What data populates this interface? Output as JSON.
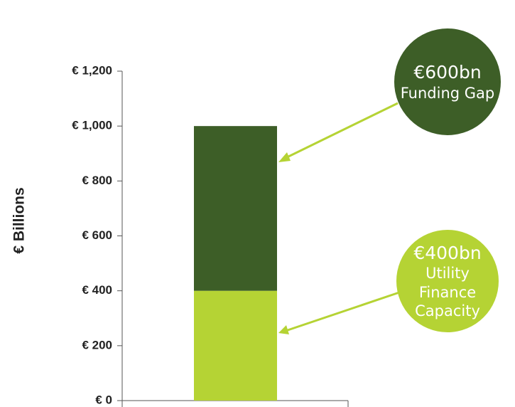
{
  "chart_data": {
    "type": "stacked-bar",
    "ylabel": "€ Billions",
    "categories": [
      null
    ],
    "series": [
      {
        "name": "Utility Finance Capacity",
        "color": "#b5d334",
        "values": [
          400
        ],
        "value_labels": [
          "€400bn"
        ]
      },
      {
        "name": "Funding Gap",
        "color": "#3d5e27",
        "values": [
          600
        ],
        "value_labels": [
          "€600bn"
        ]
      }
    ],
    "ylim": [
      0,
      1200
    ],
    "yticks": [
      {
        "value": 0,
        "label": "€ 0"
      },
      {
        "value": 200,
        "label": "€ 200"
      },
      {
        "value": 400,
        "label": "€ 400"
      },
      {
        "value": 600,
        "label": "€ 600"
      },
      {
        "value": 800,
        "label": "€ 800"
      },
      {
        "value": 1000,
        "label": "€ 1,000"
      },
      {
        "value": 1200,
        "label": "€ 1,200"
      }
    ]
  }
}
